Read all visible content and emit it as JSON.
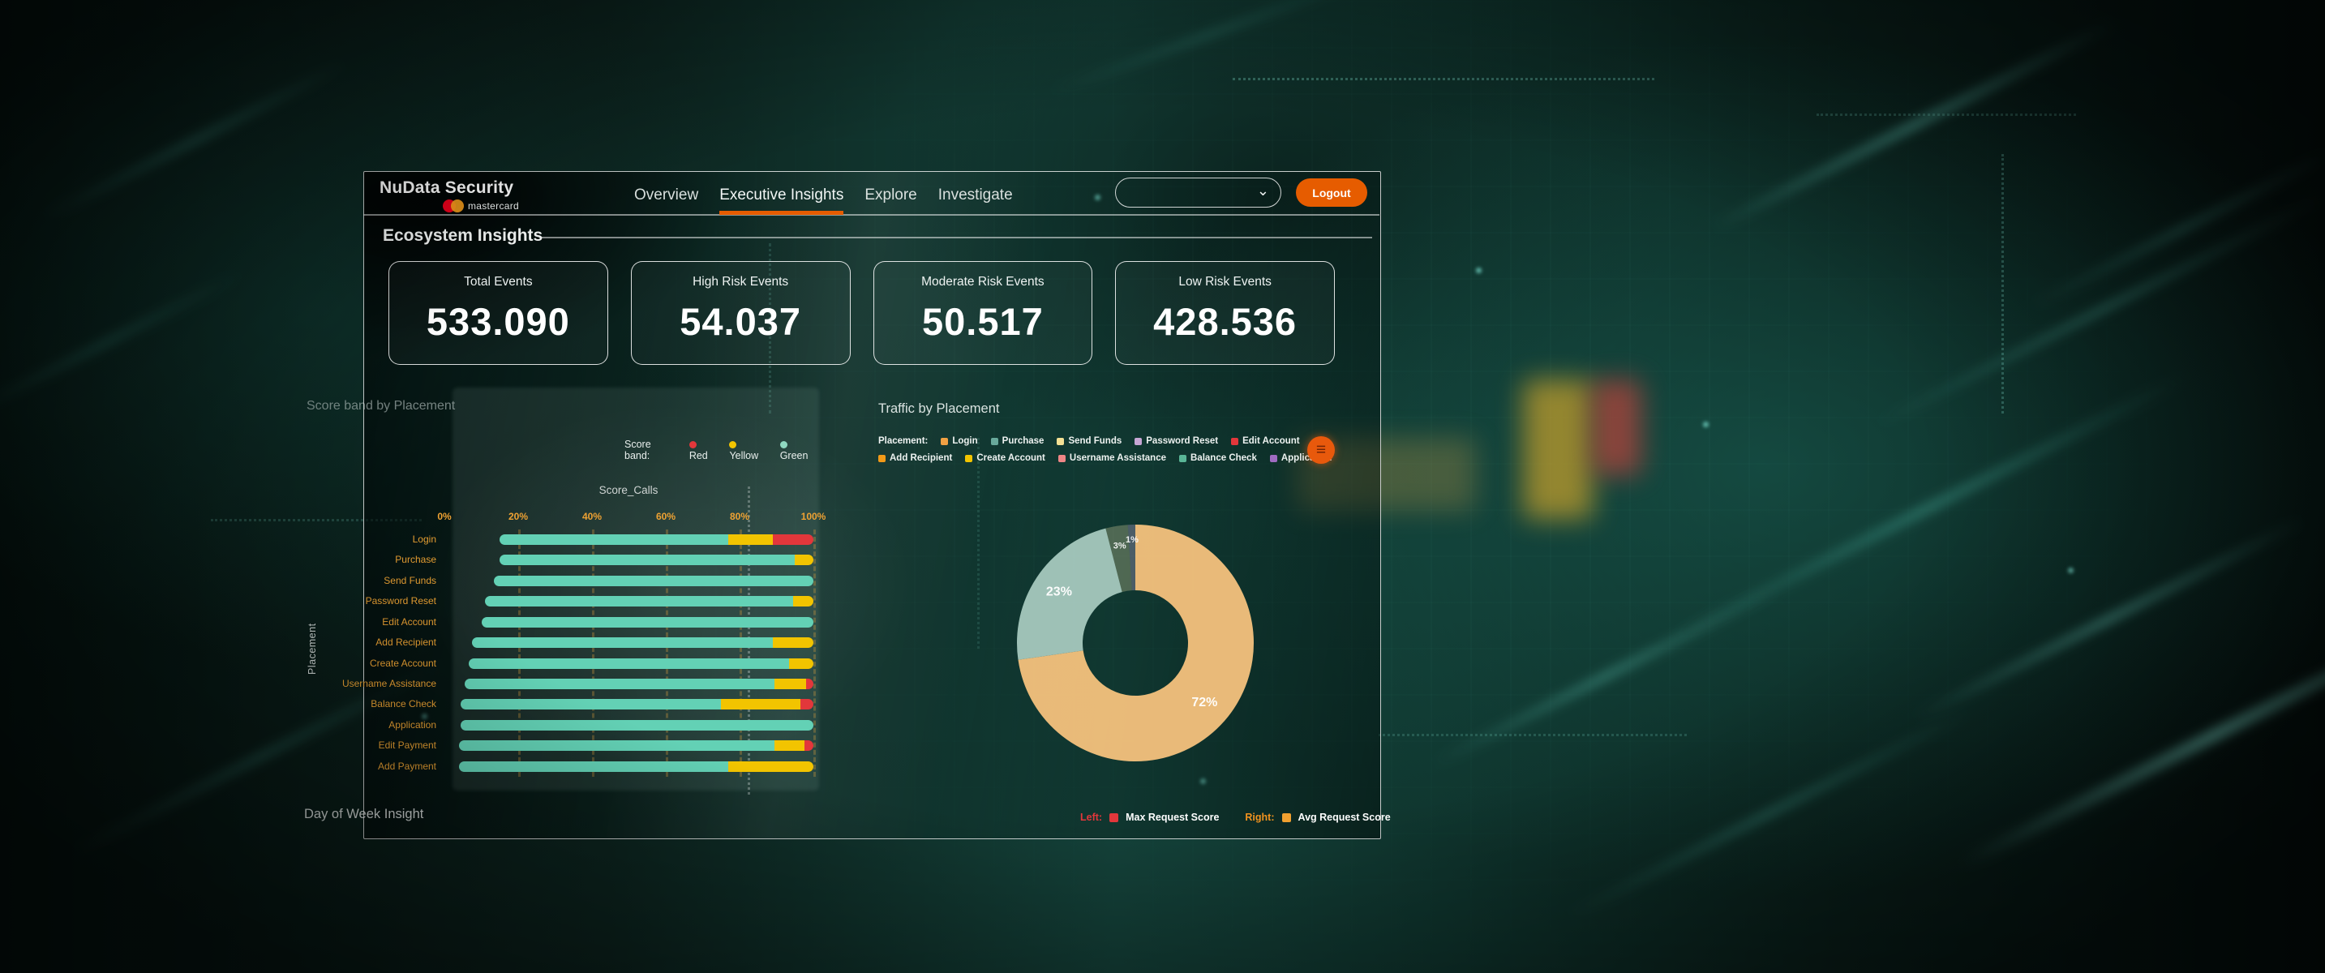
{
  "header": {
    "brand": {
      "title": "NuData Security",
      "subtitle": "mastercard"
    },
    "nav": [
      {
        "label": "Overview",
        "active": false
      },
      {
        "label": "Executive Insights",
        "active": true
      },
      {
        "label": "Explore",
        "active": false
      },
      {
        "label": "Investigate",
        "active": false
      }
    ],
    "account_select": {
      "value": ""
    },
    "logout_label": "Logout",
    "accent_color": "#e65c00"
  },
  "section": {
    "title": "Ecosystem Insights"
  },
  "stat_cards": [
    {
      "label": "Total Events",
      "value": "533.090"
    },
    {
      "label": "High Risk Events",
      "value": "54.037"
    },
    {
      "label": "Moderate Risk Events",
      "value": "50.517"
    },
    {
      "label": "Low Risk Events",
      "value": "428.536"
    }
  ],
  "chart_data": [
    {
      "type": "bar",
      "title": "Score band by Placement",
      "legend_label": "Score band:",
      "legend": [
        {
          "label": "Red",
          "color": "#e2373b"
        },
        {
          "label": "Yellow",
          "color": "#f2c400"
        },
        {
          "label": "Green",
          "color": "#8fd7c0"
        }
      ],
      "xlabel": "Score_Calls",
      "ylabel": "Placement",
      "x_ticks": [
        "0%",
        "20%",
        "40%",
        "60%",
        "80%",
        "100%"
      ],
      "xlim": [
        0,
        100
      ],
      "colors": {
        "green": "#63d1b5",
        "yellow": "#f2c400",
        "red": "#e2373b",
        "axis": "#efa233"
      },
      "rows": [
        {
          "placement": "Login",
          "start_pct": 15,
          "green_pct": 62,
          "yellow_pct": 12,
          "red_pct": 11
        },
        {
          "placement": "Purchase",
          "start_pct": 15,
          "green_pct": 80,
          "yellow_pct": 5,
          "red_pct": 0
        },
        {
          "placement": "Send Funds",
          "start_pct": 13.5,
          "green_pct": 86.5,
          "yellow_pct": 0,
          "red_pct": 0
        },
        {
          "placement": "Password Reset",
          "start_pct": 11,
          "green_pct": 83.5,
          "yellow_pct": 5.5,
          "red_pct": 0
        },
        {
          "placement": "Edit Account",
          "start_pct": 10,
          "green_pct": 90,
          "yellow_pct": 0,
          "red_pct": 0
        },
        {
          "placement": "Add Recipient",
          "start_pct": 7.5,
          "green_pct": 81.5,
          "yellow_pct": 11,
          "red_pct": 0
        },
        {
          "placement": "Create Account",
          "start_pct": 6.5,
          "green_pct": 87,
          "yellow_pct": 6.5,
          "red_pct": 0
        },
        {
          "placement": "Username Assistance",
          "start_pct": 5.5,
          "green_pct": 84,
          "yellow_pct": 8.5,
          "red_pct": 2
        },
        {
          "placement": "Balance Check",
          "start_pct": 4.5,
          "green_pct": 70.5,
          "yellow_pct": 21.5,
          "red_pct": 3.5
        },
        {
          "placement": "Application",
          "start_pct": 4.5,
          "green_pct": 95.5,
          "yellow_pct": 0,
          "red_pct": 0
        },
        {
          "placement": "Edit Payment",
          "start_pct": 4,
          "green_pct": 85.5,
          "yellow_pct": 8,
          "red_pct": 2.5
        },
        {
          "placement": "Add Payment",
          "start_pct": 4,
          "green_pct": 73,
          "yellow_pct": 23,
          "red_pct": 0
        }
      ]
    },
    {
      "type": "pie",
      "title": "Traffic by Placement",
      "legend_label": "Placement:",
      "slices": [
        {
          "label": "Login",
          "pct": 72,
          "color": "#f5c27d",
          "opacity": 0.95
        },
        {
          "label": "Purchase",
          "pct": 23,
          "color": "#aed0c5",
          "opacity": 0.9
        },
        {
          "label": "Send Funds",
          "pct": 3,
          "color": "#f3e6ae",
          "opacity": 0.28
        },
        {
          "label": "Password Reset",
          "pct": 1,
          "color": "#cbaede",
          "opacity": 0.32
        }
      ],
      "legend_rows": [
        [
          {
            "label": "Login",
            "color": "#f0a143"
          },
          {
            "label": "Purchase",
            "color": "#68a99b"
          },
          {
            "label": "Send Funds",
            "color": "#f3e094"
          },
          {
            "label": "Password Reset",
            "color": "#c6a6d4"
          },
          {
            "label": "Edit Account",
            "color": "#e2373b"
          }
        ],
        [
          {
            "label": "Add Recipient",
            "color": "#f29a18"
          },
          {
            "label": "Create Account",
            "color": "#f2c400"
          },
          {
            "label": "Username Assistance",
            "color": "#ef8686"
          },
          {
            "label": "Balance Check",
            "color": "#59b596"
          },
          {
            "label": "Application",
            "color": "#9e6bc1"
          }
        ]
      ]
    }
  ],
  "footer": {
    "title": "Day of Week Insight",
    "legend": [
      {
        "prefix": "Left:",
        "prefix_color": "#e2373b",
        "swatch_color": "#e2373b",
        "label": "Max Request Score"
      },
      {
        "prefix": "Right:",
        "prefix_color": "#f0921e",
        "swatch_color": "#f0a030",
        "label": "Avg Request Score"
      }
    ]
  },
  "icons": {
    "chevron_down": "⌄",
    "menu": "≡"
  }
}
